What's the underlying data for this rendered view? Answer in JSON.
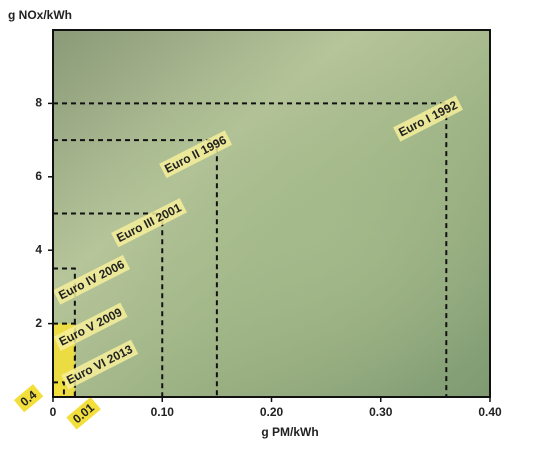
{
  "chart_data": {
    "type": "rect",
    "xlabel": "g PM/kWh",
    "ylabel": "g NOx/kWh",
    "xlim": [
      0,
      0.4
    ],
    "ylim": [
      0,
      10
    ],
    "xticks": [
      0,
      {
        "value": 0.1,
        "label": "0.10"
      },
      {
        "value": 0.2,
        "label": "0.20"
      },
      {
        "value": 0.3,
        "label": "0.30"
      },
      {
        "value": 0.4,
        "label": "0.40"
      }
    ],
    "yticks": [
      2,
      4,
      6,
      8
    ],
    "series": [
      {
        "name": "Euro I 1992",
        "x": 0.36,
        "y": 8
      },
      {
        "name": "Euro II 1996",
        "x": 0.15,
        "y": 7
      },
      {
        "name": "Euro III 2001",
        "x": 0.1,
        "y": 5
      },
      {
        "name": "Euro IV 2006",
        "x": 0.02,
        "y": 3.5
      },
      {
        "name": "Euro V 2009",
        "x": 0.02,
        "y": 2,
        "color": "#f3df3c"
      },
      {
        "name": "Euro VI 2013",
        "x": 0.01,
        "y": 0.4,
        "color": "#f3df3c"
      }
    ]
  }
}
